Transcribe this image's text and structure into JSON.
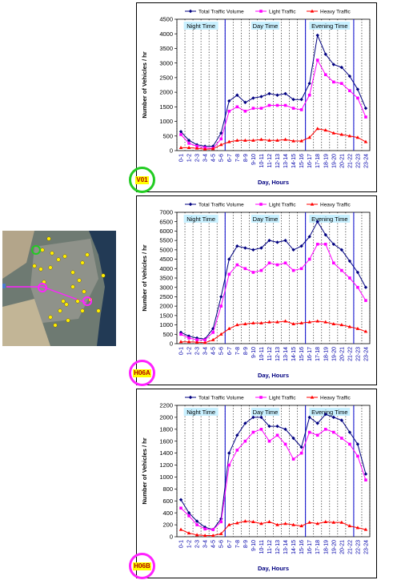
{
  "colors": {
    "total": "#000080",
    "light": "#ff00ff",
    "heavy": "#ff0000",
    "period_line": "#0000cc",
    "period_label_bg": "#c8f0ff",
    "tag_bg": "#ffff00",
    "tag_text": "#b00000",
    "tag_ring_v01": "#22cc22",
    "tag_ring_h06": "#ff22ff"
  },
  "legend": {
    "total": "Total Traffic Volume",
    "light": "Light Traffic",
    "heavy": "Heavy Traffic"
  },
  "periods": {
    "night": "Night Time",
    "day": "Day Time",
    "evening": "Evening Time"
  },
  "map": {
    "description_icons": [
      "green-station-marker",
      "pink-station-marker",
      "yellow-station-markers"
    ]
  },
  "chart_data": [
    {
      "id": "V01",
      "type": "line",
      "tag": "V01",
      "xlabel": "Day, Hours",
      "ylabel": "Number of Vehicles / hr",
      "ylim": [
        0,
        4500
      ],
      "ystep": 500,
      "categories": [
        "0-1",
        "1-2",
        "2-3",
        "3-4",
        "4-5",
        "5-6",
        "6-7",
        "7-8",
        "8-9",
        "9-10",
        "10-11",
        "11-12",
        "12-13",
        "13-14",
        "14-15",
        "15-16",
        "16-17",
        "17-18",
        "18-19",
        "19-20",
        "20-21",
        "21-22",
        "22-23",
        "23-24"
      ],
      "period_boundaries": [
        6,
        16,
        22
      ],
      "series": [
        {
          "key": "total",
          "name": "Total Traffic Volume",
          "values": [
            650,
            350,
            200,
            150,
            150,
            600,
            1700,
            1900,
            1650,
            1800,
            1850,
            1950,
            1900,
            1950,
            1750,
            1750,
            2300,
            3950,
            3300,
            2950,
            2850,
            2550,
            2100,
            1450
          ]
        },
        {
          "key": "light",
          "name": "Light Traffic",
          "values": [
            550,
            250,
            150,
            100,
            80,
            400,
            1350,
            1500,
            1350,
            1450,
            1450,
            1550,
            1550,
            1550,
            1450,
            1400,
            1900,
            3100,
            2600,
            2350,
            2300,
            2050,
            1800,
            1150
          ]
        },
        {
          "key": "heavy",
          "name": "Heavy Traffic",
          "values": [
            100,
            100,
            80,
            50,
            60,
            200,
            300,
            350,
            350,
            350,
            380,
            350,
            350,
            380,
            330,
            330,
            450,
            750,
            700,
            600,
            550,
            500,
            450,
            300
          ]
        }
      ]
    },
    {
      "id": "H06A",
      "type": "line",
      "tag": "H06A",
      "xlabel": "Day, Hours",
      "ylabel": "Number of Vehicles / hr",
      "ylim": [
        0,
        7000
      ],
      "ystep": 500,
      "categories": [
        "0-1",
        "1-2",
        "2-3",
        "3-4",
        "4-5",
        "5-6",
        "6-7",
        "7-8",
        "8-9",
        "9-10",
        "10-11",
        "11-12",
        "12-13",
        "13-14",
        "14-15",
        "15-16",
        "16-17",
        "17-18",
        "18-19",
        "19-20",
        "20-21",
        "21-22",
        "22-23",
        "23-24"
      ],
      "period_boundaries": [
        6,
        16,
        22
      ],
      "series": [
        {
          "key": "total",
          "name": "Total Traffic Volume",
          "values": [
            600,
            400,
            300,
            250,
            800,
            2500,
            4500,
            5200,
            5100,
            5000,
            5100,
            5500,
            5400,
            5500,
            5000,
            5200,
            5700,
            6500,
            5800,
            5300,
            5000,
            4400,
            3800,
            3000
          ]
        },
        {
          "key": "light",
          "name": "Light Traffic",
          "values": [
            500,
            300,
            200,
            200,
            600,
            2000,
            3700,
            4200,
            4000,
            3800,
            3900,
            4300,
            4200,
            4300,
            3900,
            4000,
            4500,
            5300,
            5300,
            4300,
            3900,
            3500,
            3000,
            2300
          ]
        },
        {
          "key": "heavy",
          "name": "Heavy Traffic",
          "values": [
            100,
            100,
            80,
            50,
            200,
            500,
            800,
            1000,
            1050,
            1100,
            1100,
            1150,
            1150,
            1200,
            1050,
            1100,
            1150,
            1200,
            1150,
            1050,
            1000,
            900,
            800,
            650
          ]
        }
      ]
    },
    {
      "id": "H06B",
      "type": "line",
      "tag": "H06B",
      "xlabel": "Day, Hours",
      "ylabel": "Number of Vehicles / hr",
      "ylim": [
        0,
        2200
      ],
      "ystep": 200,
      "categories": [
        "0-1",
        "1-2",
        "2-3",
        "3-4",
        "4-5",
        "5-6",
        "6-7",
        "7-8",
        "8-9",
        "9-10",
        "10-11",
        "11-12",
        "12-13",
        "13-14",
        "14-15",
        "15-16",
        "16-17",
        "17-18",
        "18-19",
        "19-20",
        "20-21",
        "21-22",
        "22-23",
        "23-24"
      ],
      "period_boundaries": [
        6,
        16,
        22
      ],
      "series": [
        {
          "key": "total",
          "name": "Total Traffic Volume",
          "values": [
            620,
            400,
            260,
            160,
            120,
            300,
            1400,
            1700,
            1900,
            2000,
            2000,
            1850,
            1850,
            1800,
            1650,
            1500,
            2000,
            1900,
            2050,
            2000,
            1950,
            1750,
            1550,
            1050
          ]
        },
        {
          "key": "light",
          "name": "Light Traffic",
          "values": [
            480,
            350,
            200,
            130,
            120,
            250,
            1200,
            1450,
            1600,
            1750,
            1800,
            1600,
            1700,
            1550,
            1300,
            1400,
            1750,
            1700,
            1800,
            1750,
            1650,
            1550,
            1350,
            950
          ]
        },
        {
          "key": "heavy",
          "name": "Heavy Traffic",
          "values": [
            120,
            60,
            30,
            20,
            20,
            50,
            200,
            230,
            260,
            250,
            220,
            250,
            200,
            220,
            200,
            180,
            240,
            220,
            250,
            240,
            240,
            180,
            150,
            120
          ]
        }
      ]
    }
  ]
}
